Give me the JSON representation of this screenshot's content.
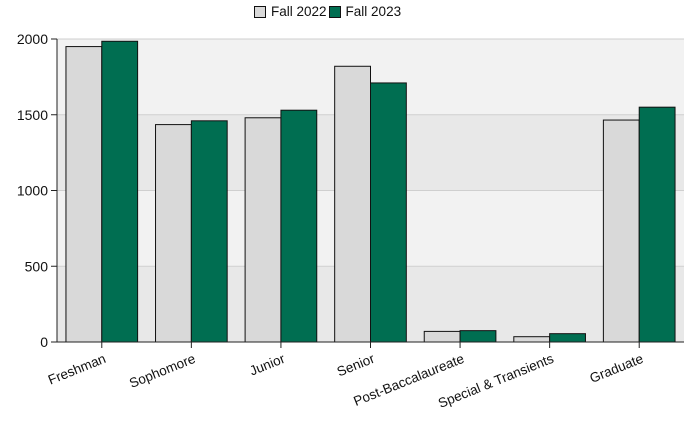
{
  "chart_data": {
    "type": "bar",
    "categories": [
      "Freshman",
      "Sophomore",
      "Junior",
      "Senior",
      "Post-Baccalaureate",
      "Special & Transients",
      "Graduate"
    ],
    "series": [
      {
        "name": "Fall 2022",
        "color": "#d9d9d9",
        "values": [
          1950,
          1435,
          1480,
          1820,
          70,
          35,
          1465
        ]
      },
      {
        "name": "Fall 2023",
        "color": "#006e51",
        "values": [
          1985,
          1460,
          1530,
          1710,
          75,
          55,
          1550
        ]
      }
    ],
    "ylim": [
      0,
      2000
    ],
    "yticks": [
      0,
      500,
      1000,
      1500,
      2000
    ],
    "grid": true,
    "legend_position": "top-center"
  }
}
